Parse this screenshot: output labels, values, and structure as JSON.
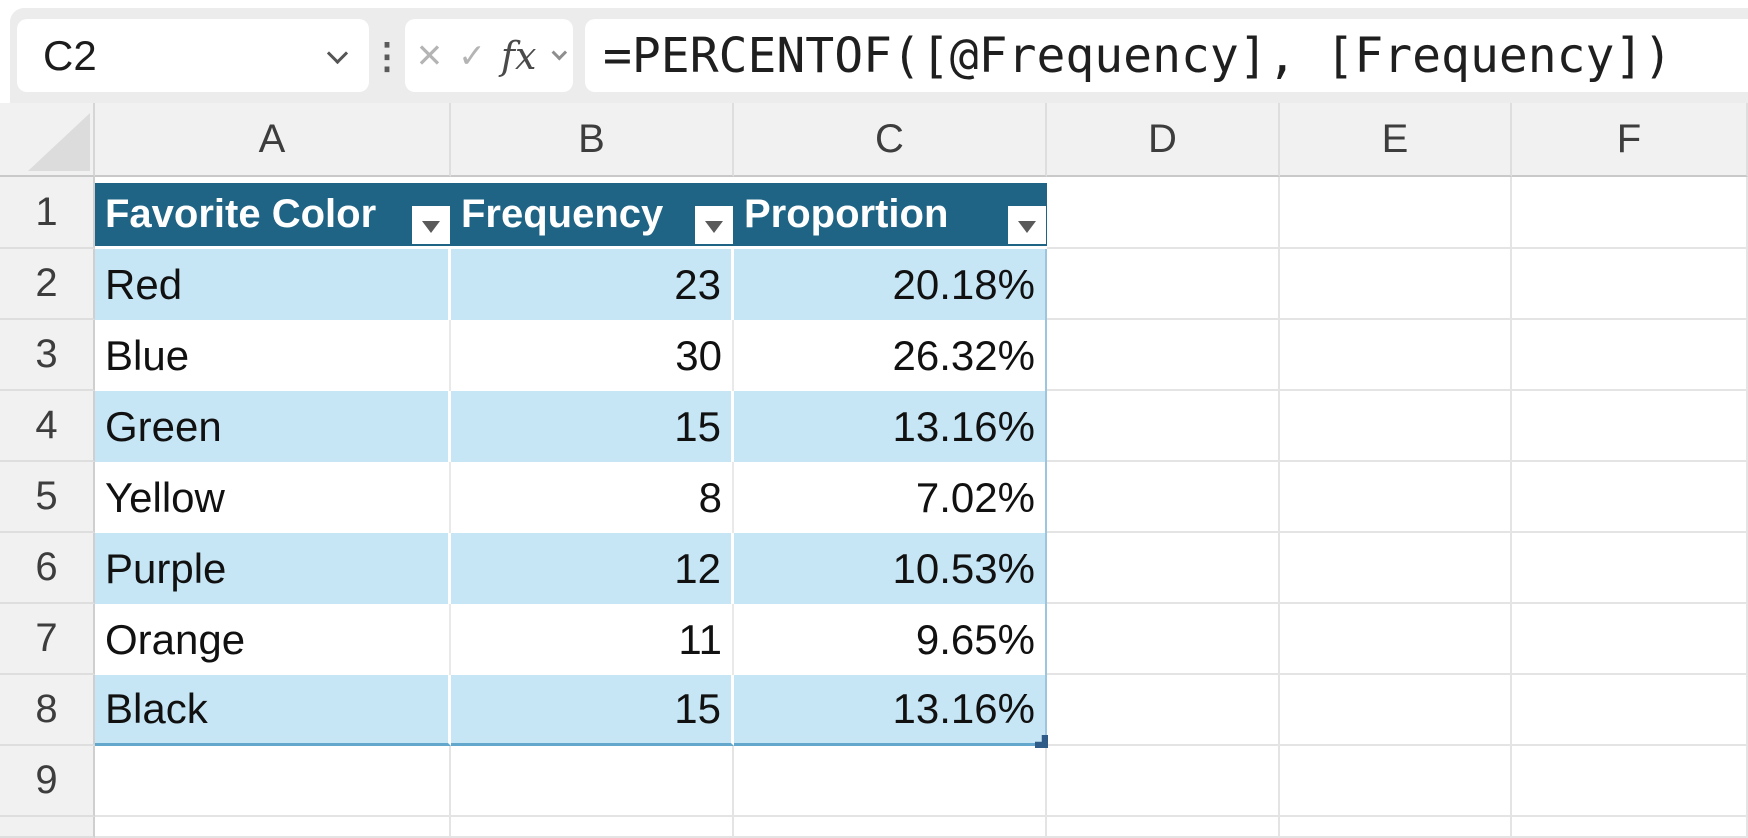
{
  "name_box": {
    "value": "C2"
  },
  "formula_bar": {
    "formula": "=PERCENTOF([@Frequency], [Frequency])",
    "cancel_label": "✕",
    "enter_label": "✓",
    "fx_label": "fx"
  },
  "sheet": {
    "column_letters": [
      "A",
      "B",
      "C",
      "D",
      "E",
      "F"
    ],
    "row_numbers": [
      "1",
      "2",
      "3",
      "4",
      "5",
      "6",
      "7",
      "8",
      "9"
    ]
  },
  "table": {
    "headers": [
      "Favorite Color",
      "Frequency",
      "Proportion"
    ],
    "rows": [
      {
        "favorite_color": "Red",
        "frequency": "23",
        "proportion": "20.18%"
      },
      {
        "favorite_color": "Blue",
        "frequency": "30",
        "proportion": "26.32%"
      },
      {
        "favorite_color": "Green",
        "frequency": "15",
        "proportion": "13.16%"
      },
      {
        "favorite_color": "Yellow",
        "frequency": "8",
        "proportion": "7.02%"
      },
      {
        "favorite_color": "Purple",
        "frequency": "12",
        "proportion": "10.53%"
      },
      {
        "favorite_color": "Orange",
        "frequency": "11",
        "proportion": "9.65%"
      },
      {
        "favorite_color": "Black",
        "frequency": "15",
        "proportion": "13.16%"
      }
    ]
  },
  "colors": {
    "table_header_fill": "#1F6485",
    "table_banded_fill": "#C6E6F5",
    "table_border": "#64A7CC",
    "resize_handle_fill": "#2F5B88",
    "formula_bar_bg": "#ECECEC"
  }
}
